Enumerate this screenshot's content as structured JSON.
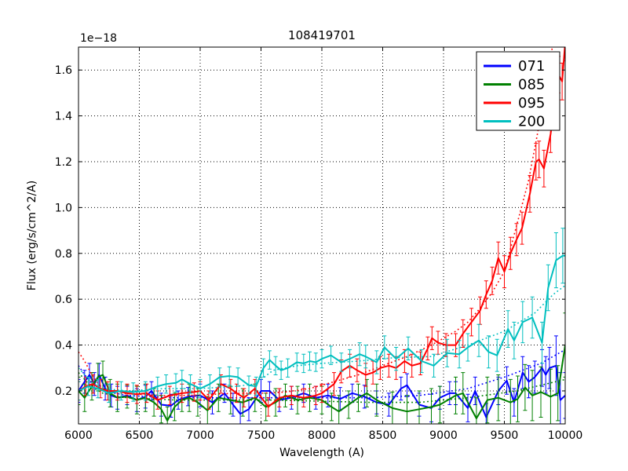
{
  "title": "108419701",
  "offset_text": "1e−18",
  "xlabel": "Wavelength (A)",
  "ylabel": "Flux (erg/s/cm^2/A)",
  "legend": {
    "position": "upper right",
    "entries": [
      {
        "label": "071",
        "color": "#0000ff"
      },
      {
        "label": "085",
        "color": "#008000"
      },
      {
        "label": "095",
        "color": "#ff0000"
      },
      {
        "label": "200",
        "color": "#00bfbf"
      }
    ]
  },
  "chart_data": {
    "type": "line",
    "title": "108419701",
    "xlabel": "Wavelength (A)",
    "ylabel": "Flux (erg/s/cm^2/A)",
    "y_offset_factor": "1e-18",
    "xlim": [
      6000,
      10000
    ],
    "ylim": [
      0.056,
      1.7
    ],
    "xticks": [
      6000,
      6500,
      7000,
      7500,
      8000,
      8500,
      9000,
      9500,
      10000
    ],
    "yticks": [
      0.2,
      0.4,
      0.6,
      0.8,
      1.0,
      1.2,
      1.4,
      1.6
    ],
    "grid": true,
    "grid_style": "dotted",
    "legend_position": "upper right",
    "series": [
      {
        "name": "071",
        "color": "#0000ff",
        "style": "solid_with_errorbars",
        "x": [
          6000,
          6050,
          6090,
          6130,
          6170,
          6220,
          6270,
          6320,
          6400,
          6480,
          6550,
          6600,
          6680,
          6760,
          6820,
          6900,
          7000,
          7100,
          7200,
          7270,
          7330,
          7400,
          7500,
          7570,
          7650,
          7750,
          7850,
          7950,
          8050,
          8150,
          8250,
          8350,
          8450,
          8550,
          8650,
          8700,
          8800,
          8900,
          8970,
          9050,
          9100,
          9200,
          9260,
          9350,
          9450,
          9520,
          9580,
          9650,
          9700,
          9750,
          9810,
          9840,
          9870,
          9925,
          9960,
          10000
        ],
        "y": [
          0.2,
          0.24,
          0.27,
          0.23,
          0.27,
          0.21,
          0.18,
          0.17,
          0.18,
          0.16,
          0.175,
          0.2,
          0.14,
          0.135,
          0.16,
          0.175,
          0.18,
          0.15,
          0.19,
          0.14,
          0.1,
          0.12,
          0.2,
          0.2,
          0.16,
          0.17,
          0.19,
          0.17,
          0.18,
          0.165,
          0.19,
          0.175,
          0.15,
          0.14,
          0.21,
          0.225,
          0.14,
          0.125,
          0.17,
          0.19,
          0.19,
          0.125,
          0.2,
          0.085,
          0.2,
          0.245,
          0.15,
          0.28,
          0.24,
          0.26,
          0.3,
          0.27,
          0.3,
          0.31,
          0.16,
          0.18
        ],
        "yerr": [
          0.05,
          0.05,
          0.05,
          0.05,
          0.05,
          0.05,
          0.05,
          0.05,
          0.04,
          0.05,
          0.05,
          0.04,
          0.05,
          0.05,
          0.04,
          0.04,
          0.05,
          0.05,
          0.04,
          0.05,
          0.05,
          0.05,
          0.05,
          0.04,
          0.05,
          0.05,
          0.04,
          0.05,
          0.05,
          0.05,
          0.04,
          0.05,
          0.05,
          0.05,
          0.05,
          0.05,
          0.05,
          0.06,
          0.05,
          0.05,
          0.05,
          0.06,
          0.06,
          0.06,
          0.06,
          0.06,
          0.06,
          0.07,
          0.07,
          0.07,
          0.08,
          0.08,
          0.09,
          0.13,
          0.12,
          0.1
        ]
      },
      {
        "name": "071 model",
        "color": "#0000ff",
        "style": "dotted",
        "x": [
          6000,
          6050,
          6100,
          6200,
          6400,
          6800,
          7200,
          7600,
          8000,
          8400,
          8800,
          9200,
          9500,
          9800,
          10000
        ],
        "y": [
          0.31,
          0.27,
          0.24,
          0.2,
          0.18,
          0.17,
          0.17,
          0.17,
          0.17,
          0.17,
          0.18,
          0.21,
          0.26,
          0.32,
          0.38
        ]
      },
      {
        "name": "085",
        "color": "#008000",
        "style": "solid_with_errorbars",
        "x": [
          6000,
          6050,
          6110,
          6160,
          6200,
          6260,
          6320,
          6400,
          6480,
          6550,
          6620,
          6680,
          6730,
          6790,
          6850,
          6910,
          6980,
          7060,
          7150,
          7250,
          7350,
          7450,
          7540,
          7620,
          7700,
          7800,
          7900,
          8000,
          8080,
          8140,
          8220,
          8300,
          8370,
          8450,
          8580,
          8700,
          8800,
          8900,
          8970,
          9100,
          9160,
          9270,
          9360,
          9450,
          9550,
          9610,
          9670,
          9730,
          9800,
          9880,
          9940,
          10000
        ],
        "y": [
          0.2,
          0.17,
          0.22,
          0.26,
          0.27,
          0.19,
          0.17,
          0.175,
          0.16,
          0.17,
          0.15,
          0.12,
          0.07,
          0.13,
          0.16,
          0.17,
          0.15,
          0.115,
          0.17,
          0.16,
          0.15,
          0.17,
          0.13,
          0.15,
          0.18,
          0.16,
          0.17,
          0.16,
          0.13,
          0.11,
          0.14,
          0.17,
          0.19,
          0.16,
          0.125,
          0.11,
          0.12,
          0.13,
          0.14,
          0.18,
          0.19,
          0.08,
          0.16,
          0.17,
          0.15,
          0.165,
          0.215,
          0.18,
          0.195,
          0.175,
          0.19,
          0.4
        ],
        "yerr": [
          0.06,
          0.06,
          0.06,
          0.06,
          0.06,
          0.06,
          0.06,
          0.05,
          0.06,
          0.06,
          0.06,
          0.06,
          0.06,
          0.06,
          0.05,
          0.06,
          0.06,
          0.06,
          0.06,
          0.06,
          0.06,
          0.06,
          0.06,
          0.06,
          0.05,
          0.06,
          0.06,
          0.06,
          0.06,
          0.07,
          0.06,
          0.06,
          0.06,
          0.07,
          0.07,
          0.07,
          0.08,
          0.08,
          0.08,
          0.08,
          0.09,
          0.09,
          0.1,
          0.1,
          0.1,
          0.1,
          0.1,
          0.11,
          0.11,
          0.12,
          0.12,
          0.14
        ]
      },
      {
        "name": "085 model",
        "color": "#008000",
        "style": "dotted",
        "x": [
          6000,
          6050,
          6100,
          6200,
          6400,
          6800,
          7200,
          7600,
          8000,
          8400,
          8800,
          9200,
          9600,
          10000
        ],
        "y": [
          0.28,
          0.25,
          0.22,
          0.19,
          0.17,
          0.16,
          0.16,
          0.16,
          0.155,
          0.15,
          0.15,
          0.17,
          0.2,
          0.25
        ]
      },
      {
        "name": "095",
        "color": "#ff0000",
        "style": "solid_with_errorbars",
        "x": [
          6000,
          6060,
          6120,
          6180,
          6240,
          6320,
          6400,
          6480,
          6560,
          6650,
          6750,
          6850,
          6950,
          7000,
          7070,
          7170,
          7250,
          7300,
          7360,
          7450,
          7560,
          7650,
          7750,
          7850,
          7950,
          8000,
          8100,
          8160,
          8230,
          8290,
          8360,
          8420,
          8480,
          8550,
          8610,
          8680,
          8740,
          8810,
          8870,
          8905,
          8955,
          9020,
          9100,
          9160,
          9230,
          9300,
          9350,
          9400,
          9450,
          9500,
          9550,
          9600,
          9645,
          9710,
          9760,
          9785,
          9825,
          9880,
          9945,
          9975,
          10000
        ],
        "y": [
          0.2,
          0.22,
          0.23,
          0.21,
          0.2,
          0.2,
          0.19,
          0.185,
          0.19,
          0.16,
          0.18,
          0.19,
          0.195,
          0.2,
          0.16,
          0.23,
          0.21,
          0.19,
          0.17,
          0.21,
          0.13,
          0.17,
          0.18,
          0.17,
          0.18,
          0.19,
          0.23,
          0.285,
          0.31,
          0.29,
          0.27,
          0.28,
          0.3,
          0.31,
          0.3,
          0.33,
          0.31,
          0.32,
          0.385,
          0.43,
          0.41,
          0.4,
          0.4,
          0.45,
          0.5,
          0.55,
          0.62,
          0.68,
          0.78,
          0.72,
          0.8,
          0.86,
          0.91,
          1.06,
          1.2,
          1.21,
          1.17,
          1.32,
          1.58,
          1.55,
          1.72
        ],
        "yerr": [
          0.04,
          0.04,
          0.04,
          0.04,
          0.04,
          0.04,
          0.04,
          0.04,
          0.04,
          0.04,
          0.04,
          0.04,
          0.04,
          0.04,
          0.04,
          0.04,
          0.04,
          0.04,
          0.04,
          0.04,
          0.04,
          0.04,
          0.04,
          0.04,
          0.04,
          0.04,
          0.05,
          0.05,
          0.05,
          0.05,
          0.05,
          0.05,
          0.05,
          0.05,
          0.05,
          0.05,
          0.05,
          0.05,
          0.05,
          0.05,
          0.05,
          0.05,
          0.05,
          0.06,
          0.06,
          0.06,
          0.06,
          0.06,
          0.07,
          0.07,
          0.07,
          0.07,
          0.07,
          0.08,
          0.08,
          0.08,
          0.08,
          0.08,
          0.08,
          0.08,
          0.08
        ]
      },
      {
        "name": "095 model",
        "color": "#ff0000",
        "style": "dotted",
        "x": [
          6000,
          6050,
          6100,
          6150,
          6200,
          6300,
          6500,
          6700,
          6900,
          7100,
          7300,
          7500,
          7700,
          7900,
          8100,
          8300,
          8500,
          8700,
          8900,
          9000,
          9100,
          9200,
          9300,
          9400,
          9500,
          9600,
          9700,
          9800,
          9870,
          9900
        ],
        "y": [
          0.37,
          0.33,
          0.28,
          0.24,
          0.21,
          0.19,
          0.185,
          0.18,
          0.18,
          0.185,
          0.19,
          0.19,
          0.195,
          0.21,
          0.24,
          0.27,
          0.31,
          0.35,
          0.4,
          0.43,
          0.46,
          0.5,
          0.56,
          0.63,
          0.72,
          0.92,
          1.12,
          1.4,
          1.62,
          1.72
        ]
      },
      {
        "name": "200",
        "color": "#00bfbf",
        "style": "solid_with_errorbars",
        "x": [
          6000,
          6080,
          6160,
          6250,
          6350,
          6450,
          6550,
          6650,
          6720,
          6800,
          6850,
          6920,
          7000,
          7080,
          7160,
          7240,
          7310,
          7400,
          7460,
          7520,
          7570,
          7620,
          7665,
          7720,
          7795,
          7850,
          7900,
          7950,
          8000,
          8075,
          8160,
          8230,
          8310,
          8360,
          8450,
          8515,
          8610,
          8710,
          8820,
          8920,
          9030,
          9130,
          9200,
          9290,
          9370,
          9440,
          9530,
          9580,
          9650,
          9730,
          9810,
          9860,
          9925,
          9980,
          10000
        ],
        "y": [
          0.2,
          0.22,
          0.21,
          0.19,
          0.2,
          0.195,
          0.2,
          0.22,
          0.23,
          0.235,
          0.25,
          0.23,
          0.21,
          0.23,
          0.26,
          0.265,
          0.26,
          0.225,
          0.22,
          0.3,
          0.335,
          0.31,
          0.29,
          0.3,
          0.325,
          0.32,
          0.33,
          0.325,
          0.34,
          0.355,
          0.325,
          0.34,
          0.36,
          0.35,
          0.325,
          0.39,
          0.34,
          0.385,
          0.33,
          0.31,
          0.365,
          0.36,
          0.39,
          0.42,
          0.37,
          0.355,
          0.47,
          0.42,
          0.5,
          0.52,
          0.41,
          0.65,
          0.77,
          0.79,
          0.79
        ],
        "yerr": [
          0.04,
          0.04,
          0.04,
          0.04,
          0.04,
          0.04,
          0.04,
          0.04,
          0.04,
          0.04,
          0.04,
          0.04,
          0.04,
          0.04,
          0.04,
          0.04,
          0.04,
          0.04,
          0.04,
          0.04,
          0.04,
          0.04,
          0.04,
          0.04,
          0.04,
          0.04,
          0.04,
          0.04,
          0.04,
          0.04,
          0.04,
          0.04,
          0.05,
          0.05,
          0.05,
          0.05,
          0.05,
          0.05,
          0.05,
          0.05,
          0.06,
          0.06,
          0.06,
          0.07,
          0.07,
          0.07,
          0.08,
          0.08,
          0.09,
          0.09,
          0.09,
          0.1,
          0.12,
          0.12,
          0.12
        ]
      },
      {
        "name": "200 model",
        "color": "#00bfbf",
        "style": "dotted",
        "x": [
          6000,
          6050,
          6100,
          6200,
          6400,
          6700,
          7000,
          7300,
          7450,
          7600,
          7800,
          8000,
          8300,
          8600,
          8900,
          9200,
          9500,
          9750,
          9900,
          10000
        ],
        "y": [
          0.3,
          0.27,
          0.24,
          0.21,
          0.2,
          0.21,
          0.21,
          0.22,
          0.23,
          0.29,
          0.31,
          0.32,
          0.33,
          0.345,
          0.35,
          0.4,
          0.46,
          0.54,
          0.62,
          0.66
        ]
      }
    ]
  }
}
